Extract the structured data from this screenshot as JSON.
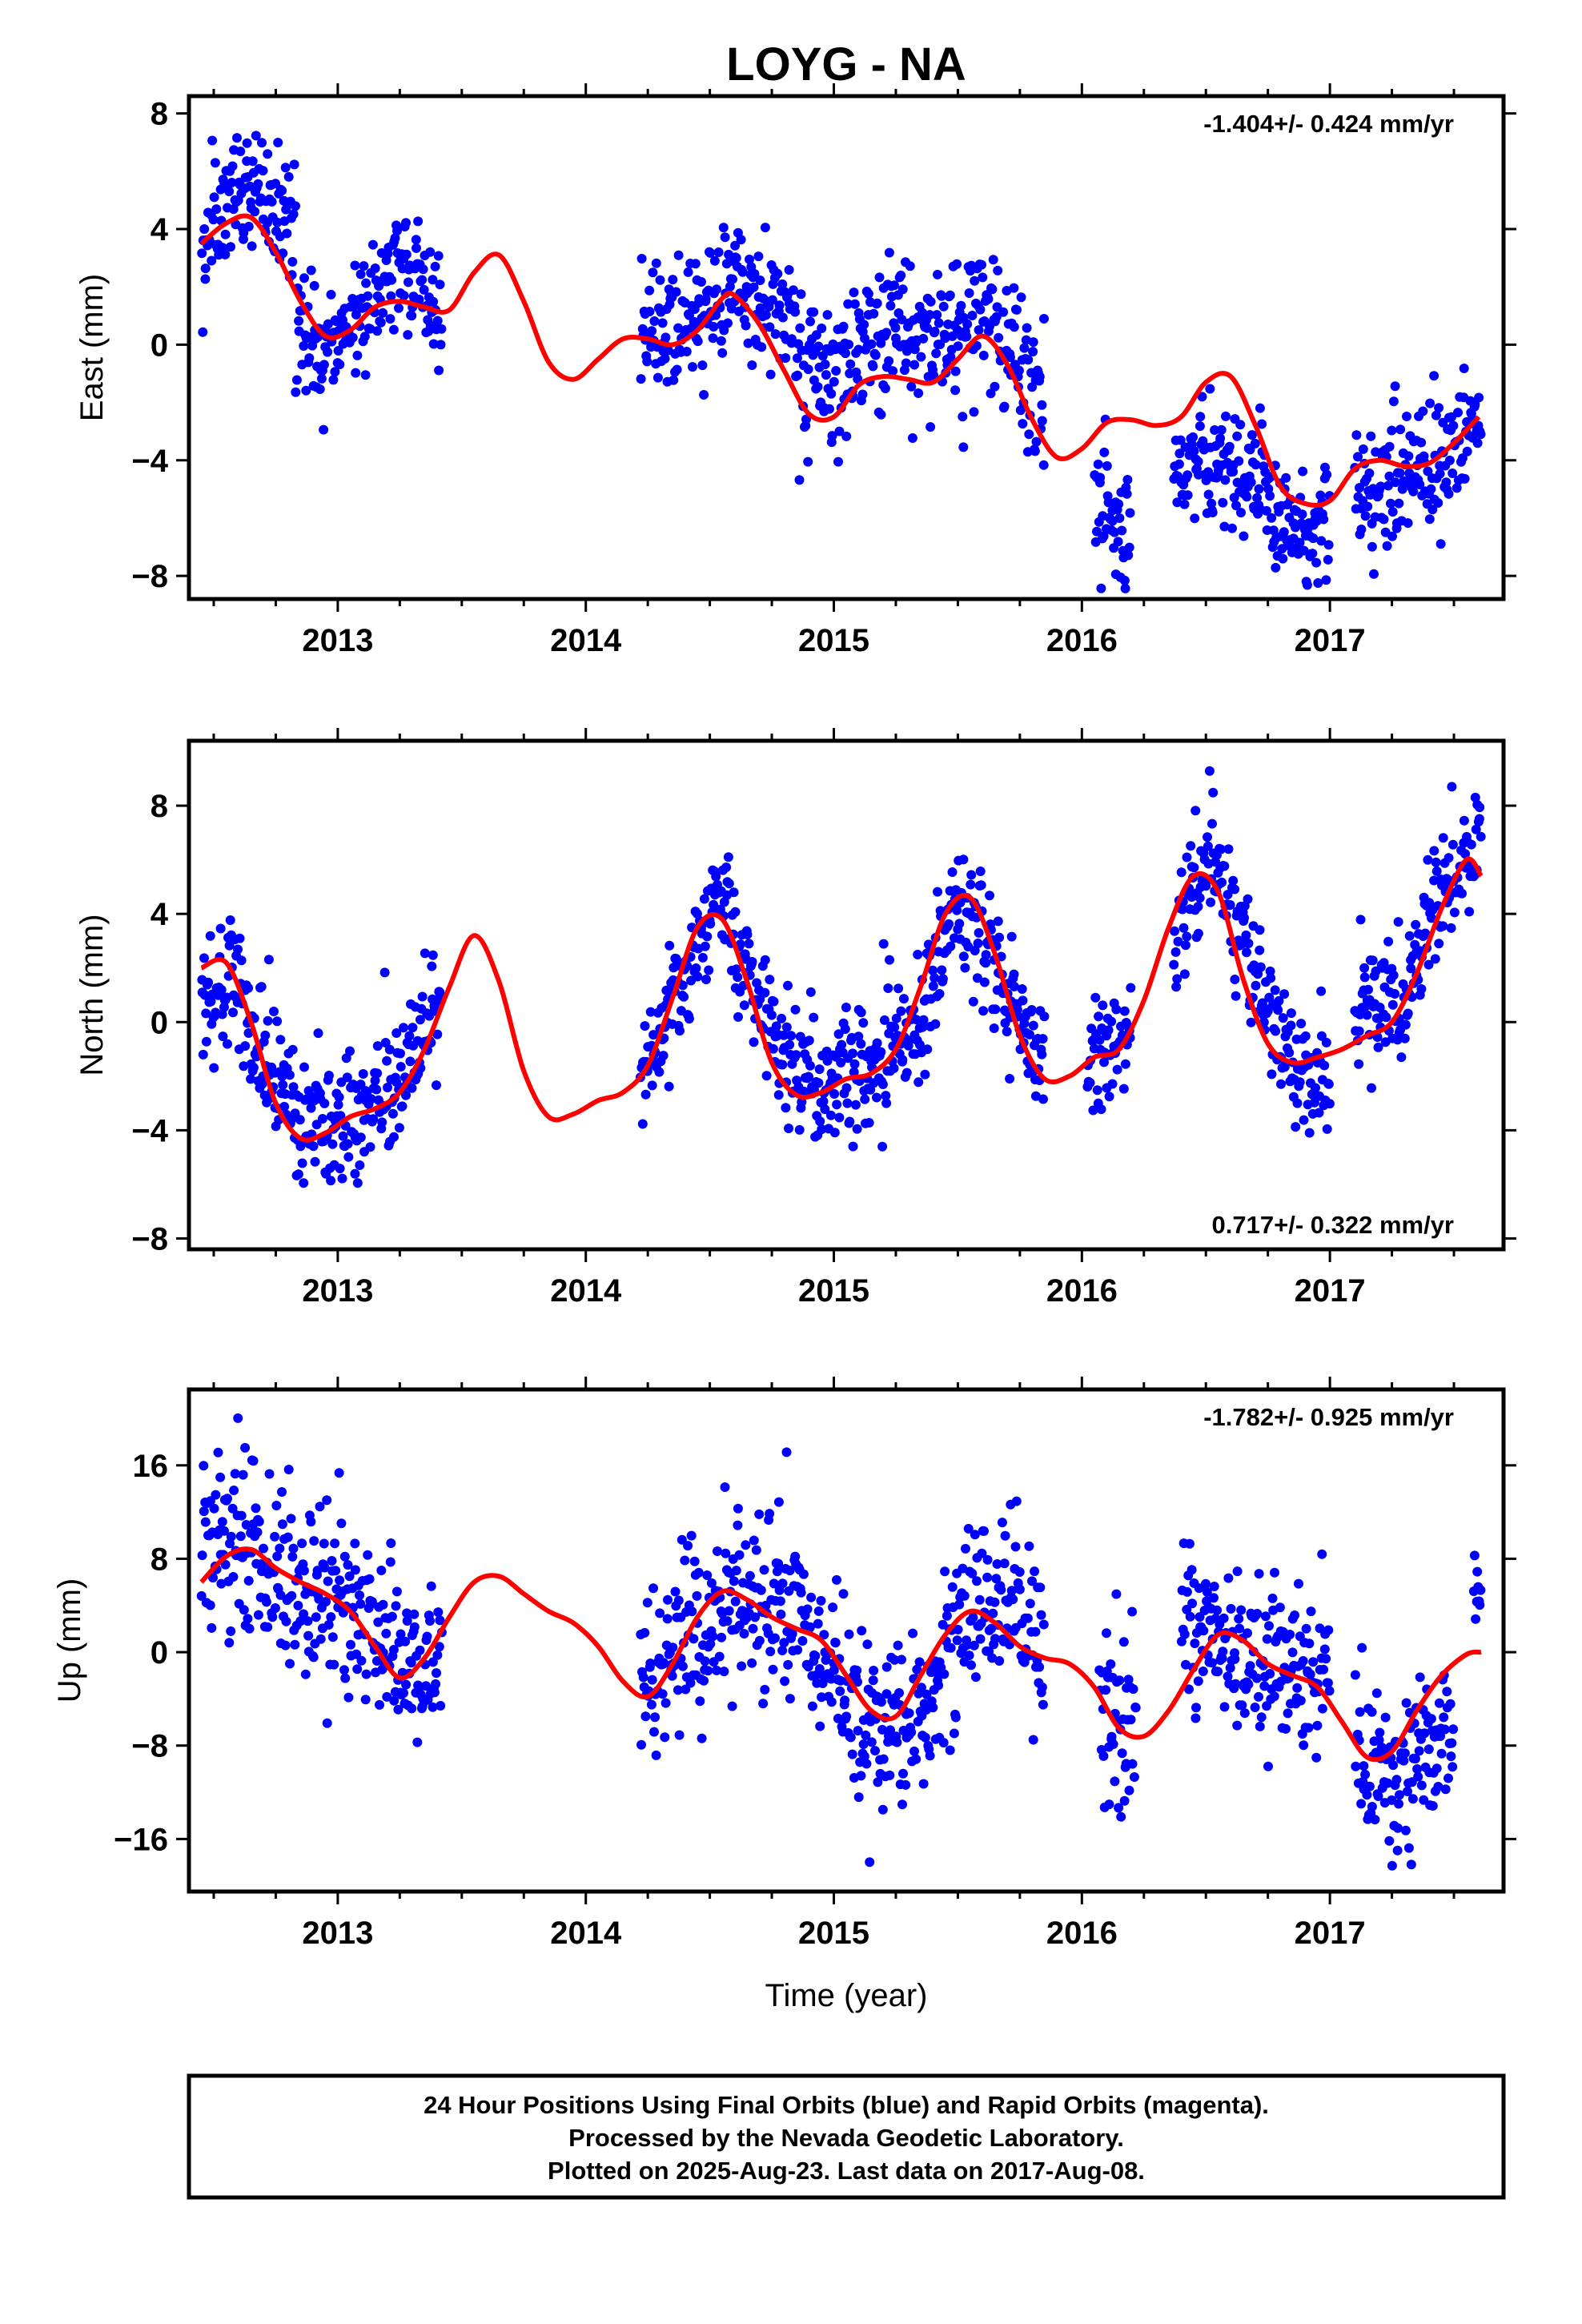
{
  "title": "LOYG - NA",
  "xlabel": "Time (year)",
  "footer": {
    "line1": "24 Hour Positions Using Final Orbits (blue) and Rapid Orbits (magenta).",
    "line2": "Processed by the Nevada Geodetic Laboratory.",
    "line3": "Plotted on 2025-Aug-23. Last data on 2017-Aug-08."
  },
  "colors": {
    "points": "#0000ff",
    "fit": "#ff0000",
    "frame": "#000000"
  },
  "chart_data": [
    {
      "type": "scatter",
      "ylabel": "East (mm)",
      "rate_text": "-1.404+/- 0.424 mm/yr",
      "rate_position": "top-right",
      "xlim": [
        2012.4,
        2017.7
      ],
      "ylim": [
        -8.8,
        8.6
      ],
      "xticks": [
        2013,
        2014,
        2015,
        2016,
        2017
      ],
      "xtick_labels": [
        "2013",
        "2014",
        "2015",
        "2016",
        "2017"
      ],
      "yticks": [
        8,
        4,
        0,
        -4,
        -8
      ],
      "ytick_labels": [
        "8",
        "4",
        "0",
        "−4",
        "−8"
      ],
      "grid": false,
      "fit_curve": {
        "name": "fit",
        "x": [
          2012.45,
          2012.55,
          2012.65,
          2012.75,
          2012.85,
          2012.95,
          2013.05,
          2013.15,
          2013.25,
          2013.35,
          2013.45,
          2013.55,
          2013.65,
          2013.75,
          2013.85,
          2013.95,
          2014.05,
          2014.15,
          2014.25,
          2014.35,
          2014.45,
          2014.55,
          2014.6,
          2014.7,
          2014.8,
          2014.9,
          2015.0,
          2015.1,
          2015.2,
          2015.3,
          2015.4,
          2015.5,
          2015.6,
          2015.7,
          2015.8,
          2015.9,
          2016.0,
          2016.1,
          2016.2,
          2016.3,
          2016.4,
          2016.5,
          2016.6,
          2016.7,
          2016.8,
          2016.9,
          2017.0,
          2017.1,
          2017.2,
          2017.3,
          2017.4,
          2017.5,
          2017.6
        ],
        "y": [
          3.5,
          4.2,
          4.4,
          3.2,
          1.5,
          0.3,
          0.5,
          1.3,
          1.5,
          1.3,
          1.2,
          2.5,
          3.1,
          1.5,
          -0.6,
          -1.2,
          -0.5,
          0.2,
          0.2,
          0.0,
          0.5,
          1.6,
          1.7,
          0.7,
          -0.9,
          -2.4,
          -2.5,
          -1.4,
          -1.1,
          -1.2,
          -1.3,
          -0.5,
          0.3,
          -0.7,
          -2.6,
          -3.9,
          -3.6,
          -2.7,
          -2.6,
          -2.8,
          -2.5,
          -1.3,
          -1.1,
          -2.8,
          -4.9,
          -5.5,
          -5.4,
          -4.3,
          -4.0,
          -4.2,
          -4.1,
          -3.4,
          -2.5
        ]
      },
      "points": {
        "name": "daily positions",
        "segments": [
          {
            "start": 2012.45,
            "end": 2012.83,
            "knots": [
              [
                2012.45,
                3.4
              ],
              [
                2012.6,
                5.2
              ],
              [
                2012.75,
                5.0
              ],
              [
                2012.83,
                3.8
              ]
            ],
            "scatter": 1.2
          },
          {
            "start": 2012.83,
            "end": 2013.0,
            "knots": [
              [
                2012.83,
                1.2
              ],
              [
                2012.92,
                -0.5
              ],
              [
                2013.0,
                0.0
              ]
            ],
            "scatter": 1.0
          },
          {
            "start": 2013.0,
            "end": 2013.42,
            "knots": [
              [
                2013.0,
                0.5
              ],
              [
                2013.15,
                2.0
              ],
              [
                2013.25,
                2.8
              ],
              [
                2013.42,
                1.0
              ]
            ],
            "scatter": 1.1
          },
          {
            "start": 2014.22,
            "end": 2014.85,
            "knots": [
              [
                2014.22,
                0.6
              ],
              [
                2014.4,
                0.7
              ],
              [
                2014.6,
                2.0
              ],
              [
                2014.85,
                1.0
              ]
            ],
            "scatter": 1.2
          },
          {
            "start": 2014.85,
            "end": 2015.85,
            "knots": [
              [
                2014.85,
                -0.8
              ],
              [
                2015.0,
                -1.2
              ],
              [
                2015.2,
                0.6
              ],
              [
                2015.4,
                0.2
              ],
              [
                2015.6,
                1.0
              ],
              [
                2015.75,
                -0.5
              ],
              [
                2015.85,
                -2.8
              ]
            ],
            "scatter": 1.3
          },
          {
            "start": 2016.05,
            "end": 2016.2,
            "knots": [
              [
                2016.05,
                -5.0
              ],
              [
                2016.2,
                -6.0
              ]
            ],
            "scatter": 1.4
          },
          {
            "start": 2016.37,
            "end": 2016.75,
            "knots": [
              [
                2016.37,
                -4.2
              ],
              [
                2016.55,
                -3.8
              ],
              [
                2016.75,
                -4.8
              ]
            ],
            "scatter": 1.0
          },
          {
            "start": 2016.75,
            "end": 2017.0,
            "knots": [
              [
                2016.75,
                -5.8
              ],
              [
                2016.9,
                -6.5
              ],
              [
                2017.0,
                -5.8
              ]
            ],
            "scatter": 0.9
          },
          {
            "start": 2017.1,
            "end": 2017.55,
            "knots": [
              [
                2017.1,
                -5.2
              ],
              [
                2017.3,
                -4.8
              ],
              [
                2017.55,
                -3.6
              ]
            ],
            "scatter": 1.1
          },
          {
            "start": 2017.55,
            "end": 2017.61,
            "knots": [
              [
                2017.55,
                -2.8
              ],
              [
                2017.61,
                -2.4
              ]
            ],
            "scatter": 0.8
          }
        ]
      }
    },
    {
      "type": "scatter",
      "ylabel": "North (mm)",
      "rate_text": "0.717+/- 0.322 mm/yr",
      "rate_position": "bottom-right",
      "xlim": [
        2012.4,
        2017.7
      ],
      "ylim": [
        -8.4,
        10.4
      ],
      "xticks": [
        2013,
        2014,
        2015,
        2016,
        2017
      ],
      "xtick_labels": [
        "2013",
        "2014",
        "2015",
        "2016",
        "2017"
      ],
      "yticks": [
        8,
        4,
        0,
        -4,
        -8
      ],
      "ytick_labels": [
        "8",
        "4",
        "0",
        "−4",
        "−8"
      ],
      "grid": false,
      "fit_curve": {
        "name": "fit",
        "x": [
          2012.45,
          2012.55,
          2012.65,
          2012.75,
          2012.85,
          2012.95,
          2013.05,
          2013.15,
          2013.25,
          2013.35,
          2013.45,
          2013.55,
          2013.65,
          2013.75,
          2013.85,
          2013.95,
          2014.05,
          2014.15,
          2014.25,
          2014.35,
          2014.45,
          2014.55,
          2014.65,
          2014.75,
          2014.85,
          2014.95,
          2015.05,
          2015.15,
          2015.25,
          2015.35,
          2015.45,
          2015.55,
          2015.65,
          2015.75,
          2015.85,
          2015.95,
          2016.05,
          2016.15,
          2016.25,
          2016.35,
          2016.45,
          2016.55,
          2016.65,
          2016.75,
          2016.85,
          2016.95,
          2017.05,
          2017.15,
          2017.25,
          2017.35,
          2017.45,
          2017.55,
          2017.61
        ],
        "y": [
          2.0,
          2.2,
          0.0,
          -3.0,
          -4.3,
          -4.1,
          -3.5,
          -3.2,
          -2.6,
          -1.0,
          1.3,
          3.2,
          1.5,
          -1.8,
          -3.5,
          -3.4,
          -2.9,
          -2.6,
          -1.6,
          0.9,
          3.5,
          3.8,
          1.5,
          -1.5,
          -2.7,
          -2.6,
          -2.1,
          -1.9,
          -1.0,
          1.3,
          4.0,
          4.6,
          2.5,
          -0.5,
          -2.1,
          -2.0,
          -1.3,
          -1.0,
          0.8,
          3.5,
          5.4,
          4.8,
          1.6,
          -0.8,
          -1.5,
          -1.3,
          -1.0,
          -0.5,
          0.0,
          1.8,
          4.2,
          6.0,
          5.4
        ]
      },
      "points": {
        "name": "daily positions",
        "segments": [
          {
            "start": 2012.45,
            "end": 2012.62,
            "knots": [
              [
                2012.45,
                0.3
              ],
              [
                2012.55,
                1.5
              ],
              [
                2012.62,
                2.4
              ]
            ],
            "scatter": 1.2
          },
          {
            "start": 2012.62,
            "end": 2013.42,
            "knots": [
              [
                2012.62,
                0.0
              ],
              [
                2012.8,
                -3.2
              ],
              [
                2013.0,
                -3.5
              ],
              [
                2013.15,
                -3.0
              ],
              [
                2013.3,
                -1.0
              ],
              [
                2013.42,
                1.0
              ]
            ],
            "scatter": 1.3
          },
          {
            "start": 2014.22,
            "end": 2014.85,
            "knots": [
              [
                2014.22,
                -2.2
              ],
              [
                2014.4,
                1.5
              ],
              [
                2014.52,
                4.5
              ],
              [
                2014.65,
                2.0
              ],
              [
                2014.85,
                -2.0
              ]
            ],
            "scatter": 1.1
          },
          {
            "start": 2014.85,
            "end": 2015.85,
            "knots": [
              [
                2014.85,
                -2.5
              ],
              [
                2015.0,
                -2.0
              ],
              [
                2015.2,
                -1.5
              ],
              [
                2015.35,
                0.5
              ],
              [
                2015.52,
                4.5
              ],
              [
                2015.7,
                1.0
              ],
              [
                2015.85,
                -2.0
              ]
            ],
            "scatter": 1.2
          },
          {
            "start": 2016.02,
            "end": 2016.2,
            "knots": [
              [
                2016.02,
                -1.5
              ],
              [
                2016.2,
                -0.5
              ]
            ],
            "scatter": 1.0
          },
          {
            "start": 2016.37,
            "end": 2017.0,
            "knots": [
              [
                2016.37,
                3.5
              ],
              [
                2016.52,
                6.5
              ],
              [
                2016.68,
                2.0
              ],
              [
                2016.85,
                -1.8
              ],
              [
                2017.0,
                -2.2
              ]
            ],
            "scatter": 1.1
          },
          {
            "start": 2017.1,
            "end": 2017.61,
            "knots": [
              [
                2017.1,
                0.0
              ],
              [
                2017.3,
                0.8
              ],
              [
                2017.45,
                5.5
              ],
              [
                2017.61,
                6.5
              ]
            ],
            "scatter": 1.2
          }
        ]
      }
    },
    {
      "type": "scatter",
      "ylabel": "Up (mm)",
      "rate_text": "-1.782+/- 0.925 mm/yr",
      "rate_position": "top-right",
      "xlim": [
        2012.4,
        2017.7
      ],
      "ylim": [
        -20.5,
        22.5
      ],
      "xticks": [
        2013,
        2014,
        2015,
        2016,
        2017
      ],
      "xtick_labels": [
        "2013",
        "2014",
        "2015",
        "2016",
        "2017"
      ],
      "yticks": [
        16,
        8,
        0,
        -8,
        -16
      ],
      "ytick_labels": [
        "16",
        "8",
        "0",
        "−8",
        "−16"
      ],
      "grid": false,
      "fit_curve": {
        "name": "fit",
        "x": [
          2012.45,
          2012.55,
          2012.65,
          2012.75,
          2012.85,
          2012.95,
          2013.05,
          2013.15,
          2013.25,
          2013.35,
          2013.45,
          2013.55,
          2013.65,
          2013.75,
          2013.85,
          2013.95,
          2014.05,
          2014.15,
          2014.25,
          2014.35,
          2014.45,
          2014.55,
          2014.65,
          2014.75,
          2014.85,
          2014.95,
          2015.05,
          2015.15,
          2015.25,
          2015.35,
          2015.45,
          2015.55,
          2015.65,
          2015.75,
          2015.85,
          2015.95,
          2016.05,
          2016.15,
          2016.25,
          2016.35,
          2016.45,
          2016.55,
          2016.65,
          2016.75,
          2016.85,
          2016.95,
          2017.05,
          2017.15,
          2017.25,
          2017.35,
          2017.45,
          2017.55,
          2017.61
        ],
        "y": [
          6.0,
          8.2,
          8.8,
          7.2,
          6.0,
          5.0,
          3.5,
          0.5,
          -2.2,
          -0.5,
          3.0,
          6.0,
          6.5,
          5.0,
          3.5,
          2.5,
          0.5,
          -2.5,
          -3.8,
          -1.0,
          3.0,
          5.2,
          4.5,
          3.0,
          2.0,
          1.0,
          -2.0,
          -5.0,
          -5.5,
          -2.0,
          1.5,
          3.5,
          2.5,
          0.5,
          -0.5,
          -1.0,
          -3.0,
          -6.5,
          -7.2,
          -5.0,
          -1.5,
          1.5,
          1.0,
          -1.0,
          -2.0,
          -3.0,
          -6.0,
          -9.0,
          -8.5,
          -5.0,
          -2.0,
          -0.2,
          0.0
        ]
      },
      "points": {
        "name": "daily positions",
        "segments": [
          {
            "start": 2012.45,
            "end": 2012.7,
            "knots": [
              [
                2012.45,
                9.0
              ],
              [
                2012.6,
                10.0
              ],
              [
                2012.7,
                8.0
              ]
            ],
            "scatter": 4.0
          },
          {
            "start": 2012.7,
            "end": 2013.42,
            "knots": [
              [
                2012.7,
                7.0
              ],
              [
                2012.95,
                5.0
              ],
              [
                2013.15,
                2.0
              ],
              [
                2013.3,
                -1.5
              ],
              [
                2013.42,
                0.0
              ]
            ],
            "scatter": 3.5
          },
          {
            "start": 2014.22,
            "end": 2014.85,
            "knots": [
              [
                2014.22,
                -3.0
              ],
              [
                2014.4,
                2.0
              ],
              [
                2014.6,
                4.5
              ],
              [
                2014.85,
                4.0
              ]
            ],
            "scatter": 4.0
          },
          {
            "start": 2014.85,
            "end": 2015.85,
            "knots": [
              [
                2014.85,
                2.0
              ],
              [
                2015.0,
                -2.0
              ],
              [
                2015.15,
                -6.5
              ],
              [
                2015.35,
                -4.5
              ],
              [
                2015.55,
                3.0
              ],
              [
                2015.7,
                6.0
              ],
              [
                2015.85,
                0.0
              ]
            ],
            "scatter": 3.6
          },
          {
            "start": 2016.07,
            "end": 2016.22,
            "knots": [
              [
                2016.07,
                -3.0
              ],
              [
                2016.22,
                -7.0
              ]
            ],
            "scatter": 4.0
          },
          {
            "start": 2016.4,
            "end": 2017.0,
            "knots": [
              [
                2016.4,
                1.0
              ],
              [
                2016.55,
                2.0
              ],
              [
                2016.75,
                -1.0
              ],
              [
                2017.0,
                -2.0
              ]
            ],
            "scatter": 3.5
          },
          {
            "start": 2017.1,
            "end": 2017.5,
            "knots": [
              [
                2017.1,
                -8.0
              ],
              [
                2017.25,
                -10.0
              ],
              [
                2017.4,
                -9.0
              ],
              [
                2017.5,
                -7.0
              ]
            ],
            "scatter": 3.5
          },
          {
            "start": 2017.58,
            "end": 2017.61,
            "knots": [
              [
                2017.58,
                4.0
              ],
              [
                2017.61,
                5.0
              ]
            ],
            "scatter": 2.5
          }
        ]
      }
    }
  ]
}
